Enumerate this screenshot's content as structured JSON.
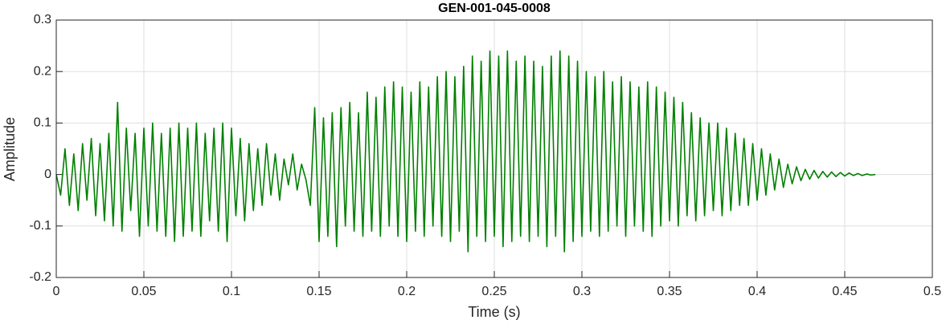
{
  "chart_data": {
    "type": "line",
    "title": "GEN-001-045-0008",
    "x_label": "Time (s)",
    "y_label": "Amplitude",
    "color": "#008000",
    "grid": true,
    "xlim": [
      0,
      0.5
    ],
    "xticks": [
      0,
      0.05,
      0.1,
      0.15,
      0.2,
      0.25,
      0.3,
      0.35,
      0.4,
      0.45,
      0.5
    ],
    "ylim": [
      -0.2,
      0.3
    ],
    "yticks": [
      -0.2,
      -0.1,
      0,
      0.1,
      0.2,
      0.3
    ],
    "x": [
      0,
      0.0025,
      0.005,
      0.0075,
      0.01,
      0.0125,
      0.015,
      0.0175,
      0.02,
      0.0225,
      0.025,
      0.0275,
      0.03,
      0.0325,
      0.035,
      0.0375,
      0.04,
      0.0425,
      0.045,
      0.0475,
      0.05,
      0.0525,
      0.055,
      0.0575,
      0.06,
      0.0625,
      0.065,
      0.0675,
      0.07,
      0.0725,
      0.075,
      0.0775,
      0.08,
      0.0825,
      0.085,
      0.0875,
      0.09,
      0.0925,
      0.095,
      0.0975,
      0.1,
      0.1025,
      0.105,
      0.1075,
      0.11,
      0.1125,
      0.115,
      0.1175,
      0.12,
      0.1225,
      0.125,
      0.1275,
      0.13,
      0.1325,
      0.135,
      0.1375,
      0.14,
      0.1425,
      0.145,
      0.1475,
      0.15,
      0.1525,
      0.155,
      0.1575,
      0.16,
      0.1625,
      0.165,
      0.1675,
      0.17,
      0.1725,
      0.175,
      0.1775,
      0.18,
      0.1825,
      0.185,
      0.1875,
      0.19,
      0.1925,
      0.195,
      0.1975,
      0.2,
      0.2025,
      0.205,
      0.2075,
      0.21,
      0.2125,
      0.215,
      0.2175,
      0.22,
      0.2225,
      0.225,
      0.2275,
      0.23,
      0.2325,
      0.235,
      0.2375,
      0.24,
      0.2425,
      0.245,
      0.2475,
      0.25,
      0.2525,
      0.255,
      0.2575,
      0.26,
      0.2625,
      0.265,
      0.2675,
      0.27,
      0.2725,
      0.275,
      0.2775,
      0.28,
      0.2825,
      0.285,
      0.2875,
      0.29,
      0.2925,
      0.295,
      0.2975,
      0.3,
      0.3025,
      0.305,
      0.3075,
      0.31,
      0.3125,
      0.315,
      0.3175,
      0.32,
      0.3225,
      0.325,
      0.3275,
      0.33,
      0.3325,
      0.335,
      0.3375,
      0.34,
      0.3425,
      0.345,
      0.3475,
      0.35,
      0.3525,
      0.355,
      0.3575,
      0.36,
      0.3625,
      0.365,
      0.3675,
      0.37,
      0.3725,
      0.375,
      0.3775,
      0.38,
      0.3825,
      0.385,
      0.3875,
      0.39,
      0.3925,
      0.395,
      0.3975,
      0.4,
      0.4025,
      0.405,
      0.4075,
      0.41,
      0.4125,
      0.415,
      0.4175,
      0.42,
      0.4225,
      0.425,
      0.4275,
      0.43,
      0.4325,
      0.435,
      0.4375,
      0.44,
      0.4425,
      0.445,
      0.4475,
      0.45,
      0.4525,
      0.455,
      0.4575,
      0.46,
      0.4625,
      0.465,
      0.4675
    ],
    "values": [
      0.0,
      -0.04,
      0.05,
      -0.06,
      0.04,
      -0.07,
      0.06,
      -0.05,
      0.07,
      -0.08,
      0.06,
      -0.09,
      0.08,
      -0.1,
      0.14,
      -0.11,
      0.09,
      -0.07,
      0.08,
      -0.12,
      0.09,
      -0.1,
      0.1,
      -0.11,
      0.08,
      -0.12,
      0.09,
      -0.13,
      0.1,
      -0.12,
      0.09,
      -0.11,
      0.1,
      -0.12,
      0.08,
      -0.09,
      0.09,
      -0.11,
      0.1,
      -0.13,
      0.09,
      -0.08,
      0.07,
      -0.09,
      0.06,
      -0.07,
      0.05,
      -0.06,
      0.06,
      -0.04,
      0.04,
      -0.05,
      0.03,
      -0.02,
      0.04,
      -0.03,
      0.02,
      -0.01,
      -0.06,
      0.13,
      -0.13,
      0.11,
      -0.12,
      0.12,
      -0.14,
      0.13,
      -0.1,
      0.14,
      -0.11,
      0.12,
      -0.12,
      0.16,
      -0.11,
      0.15,
      -0.12,
      0.17,
      -0.1,
      0.18,
      -0.12,
      0.17,
      -0.13,
      0.16,
      -0.11,
      0.18,
      -0.12,
      0.17,
      -0.1,
      0.19,
      -0.12,
      0.2,
      -0.13,
      0.19,
      -0.11,
      0.21,
      -0.15,
      0.23,
      -0.12,
      0.22,
      -0.13,
      0.24,
      -0.12,
      0.23,
      -0.14,
      0.24,
      -0.13,
      0.22,
      -0.12,
      0.23,
      -0.13,
      0.22,
      -0.12,
      0.21,
      -0.14,
      0.23,
      -0.12,
      0.24,
      -0.15,
      0.23,
      -0.13,
      0.22,
      -0.12,
      0.2,
      -0.11,
      0.19,
      -0.12,
      0.2,
      -0.11,
      0.18,
      -0.1,
      0.19,
      -0.12,
      0.18,
      -0.1,
      0.17,
      -0.11,
      0.18,
      -0.12,
      0.17,
      -0.1,
      0.16,
      -0.09,
      0.15,
      -0.1,
      0.14,
      -0.08,
      0.12,
      -0.09,
      0.11,
      -0.08,
      0.1,
      -0.07,
      0.1,
      -0.08,
      0.09,
      -0.07,
      0.08,
      -0.06,
      0.07,
      -0.06,
      0.06,
      -0.05,
      0.05,
      -0.04,
      0.04,
      -0.03,
      0.03,
      -0.025,
      0.02,
      -0.018,
      0.015,
      -0.012,
      0.01,
      -0.009,
      0.008,
      -0.007,
      0.006,
      -0.005,
      0.005,
      -0.004,
      0.004,
      -0.003,
      0.003,
      -0.002,
      0.002,
      -0.002,
      0.001,
      -0.001,
      0
    ]
  }
}
